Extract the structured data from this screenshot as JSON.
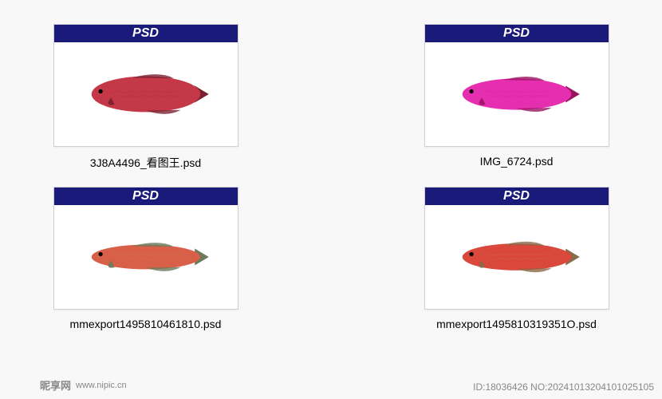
{
  "files": [
    {
      "badge": "PSD",
      "name": "3J8A4496_看图王.psd",
      "fish": {
        "body_color1": "#c43848",
        "body_color2": "#8a1f30",
        "fin_color": "#7a2030",
        "direction": "left",
        "height_ratio": 0.32
      }
    },
    {
      "badge": "PSD",
      "name": "IMG_6724.psd",
      "fish": {
        "body_color1": "#e62eb0",
        "body_color2": "#b01770",
        "fin_color": "#9a1560",
        "direction": "left",
        "height_ratio": 0.28
      }
    },
    {
      "badge": "PSD",
      "name": "mmexport1495810461810.psd",
      "fish": {
        "body_color1": "#d96048",
        "body_color2": "#b5917a",
        "fin_color": "#6a7a5a",
        "direction": "left",
        "height_ratio": 0.22
      }
    },
    {
      "badge": "PSD",
      "name": "mmexport1495810319351O.psd",
      "fish": {
        "body_color1": "#d9483a",
        "body_color2": "#c09878",
        "fin_color": "#8a6a4a",
        "direction": "left",
        "height_ratio": 0.24
      }
    }
  ],
  "watermark": {
    "site_name": "昵享网",
    "site_url": "www.nipic.cn",
    "info": "ID:18036426 NO:20241013204101025105"
  },
  "colors": {
    "badge_bg": "#1a1a7a",
    "badge_text": "#ffffff",
    "border": "#d0d0d0",
    "page_bg": "#f8f8f8"
  }
}
